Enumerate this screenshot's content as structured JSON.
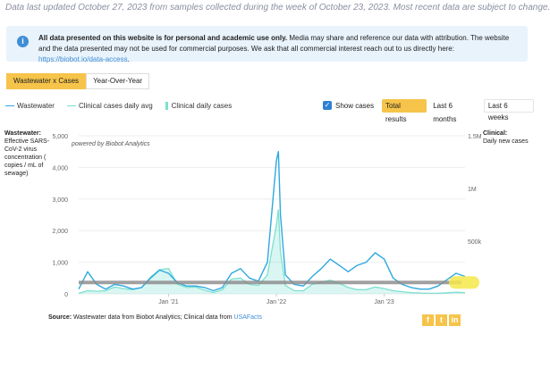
{
  "header": {
    "updated_text": "Data last updated October 27, 2023 from samples collected during the week of October 23, 2023. Most recent data are subject to change."
  },
  "notice": {
    "icon": "info-icon",
    "bold_text": "All data presented on this website is for personal and academic use only.",
    "text": " Media may share and reference our data with attribution. The website and the data presented may not be used for commercial purposes. We ask that all commercial interest reach out to us directly here: ",
    "link_text": "https://biobot.io/data-access",
    "tail": "."
  },
  "view_toggle": {
    "active": "Wastewater x Cases",
    "other": "Year-Over-Year"
  },
  "legend": {
    "wastewater": "Wastewater",
    "clinical_avg": "Clinical cases daily avg",
    "clinical_daily": "Clinical daily cases"
  },
  "controls": {
    "show_cases_label": "Show cases",
    "show_cases_checked": true,
    "ranges": [
      "Total results",
      "Last 6 months",
      "Last 6 weeks"
    ],
    "active_range": "Total results"
  },
  "axes": {
    "left_title": "Wastewater:",
    "left_subtitle": "Effective SARS-CoV-2 virus concentration ( copies / mL of sewage)",
    "right_title": "Clinical:",
    "right_subtitle": "Daily new cases",
    "watermark": "powered by Biobot Analytics"
  },
  "chart_data": {
    "type": "line",
    "x_ticks": [
      "Jan '21",
      "Jan '22",
      "Jan '23"
    ],
    "y_left_ticks": [
      "0",
      "1,000",
      "2,000",
      "3,000",
      "4,000",
      "5,000"
    ],
    "y_left_range": [
      0,
      5000
    ],
    "y_right_ticks": [
      "500k",
      "1M",
      "1.5M"
    ],
    "y_right_range": [
      0,
      1500000
    ],
    "x_range": [
      "2020-03",
      "2023-10"
    ],
    "series": [
      {
        "name": "Wastewater",
        "color": "#2ea8e0",
        "axis": "left",
        "x": [
          "2020-03",
          "2020-04",
          "2020-05",
          "2020-06",
          "2020-07",
          "2020-08",
          "2020-09",
          "2020-10",
          "2020-11",
          "2020-12",
          "2021-01",
          "2021-02",
          "2021-03",
          "2021-04",
          "2021-05",
          "2021-06",
          "2021-07",
          "2021-08",
          "2021-09",
          "2021-10",
          "2021-11",
          "2021-12",
          "2022-01-01",
          "2022-01-08",
          "2022-01-15",
          "2022-02",
          "2022-03",
          "2022-04",
          "2022-05",
          "2022-06",
          "2022-07",
          "2022-08",
          "2022-09",
          "2022-10",
          "2022-11",
          "2022-12",
          "2023-01",
          "2023-02",
          "2023-03",
          "2023-04",
          "2023-05",
          "2023-06",
          "2023-07",
          "2023-08",
          "2023-09",
          "2023-10"
        ],
        "values": [
          150,
          700,
          300,
          150,
          300,
          250,
          150,
          200,
          500,
          750,
          650,
          350,
          250,
          250,
          200,
          100,
          200,
          650,
          800,
          500,
          400,
          1000,
          4200,
          4500,
          2500,
          600,
          300,
          250,
          550,
          800,
          1100,
          900,
          700,
          900,
          1000,
          1300,
          1100,
          500,
          300,
          200,
          150,
          150,
          250,
          450,
          650,
          550
        ]
      },
      {
        "name": "Clinical cases daily avg",
        "color": "#7be0cf",
        "axis": "right",
        "x": [
          "2020-03",
          "2020-04",
          "2020-05",
          "2020-06",
          "2020-07",
          "2020-08",
          "2020-09",
          "2020-10",
          "2020-11",
          "2020-12",
          "2021-01",
          "2021-02",
          "2021-03",
          "2021-04",
          "2021-05",
          "2021-06",
          "2021-07",
          "2021-08",
          "2021-09",
          "2021-10",
          "2021-11",
          "2021-12",
          "2022-01-01",
          "2022-01-08",
          "2022-01-15",
          "2022-02",
          "2022-03",
          "2022-04",
          "2022-05",
          "2022-06",
          "2022-07",
          "2022-08",
          "2022-09",
          "2022-10",
          "2022-11",
          "2022-12",
          "2023-01",
          "2023-02",
          "2023-03",
          "2023-04",
          "2023-05",
          "2023-06",
          "2023-07",
          "2023-08",
          "2023-09",
          "2023-10"
        ],
        "values": [
          5000,
          30000,
          25000,
          30000,
          65000,
          50000,
          40000,
          60000,
          160000,
          230000,
          240000,
          90000,
          60000,
          65000,
          35000,
          12000,
          40000,
          140000,
          150000,
          90000,
          80000,
          180000,
          650000,
          800000,
          400000,
          80000,
          30000,
          30000,
          90000,
          110000,
          130000,
          100000,
          60000,
          40000,
          40000,
          65000,
          50000,
          30000,
          20000,
          12000,
          8000,
          5000,
          5000,
          10000,
          15000,
          12000
        ]
      }
    ],
    "highlight_color": "#f5e84a",
    "baseline_color": "#888888"
  },
  "footer": {
    "source_label": "Source:",
    "source_text": " Wastewater data from Biobot Analytics; Clinical data from ",
    "source_link": "USAFacts"
  },
  "social": {
    "icons": [
      "facebook-icon",
      "twitter-icon",
      "linkedin-icon"
    ],
    "glyphs": [
      "f",
      "t",
      "in"
    ]
  }
}
